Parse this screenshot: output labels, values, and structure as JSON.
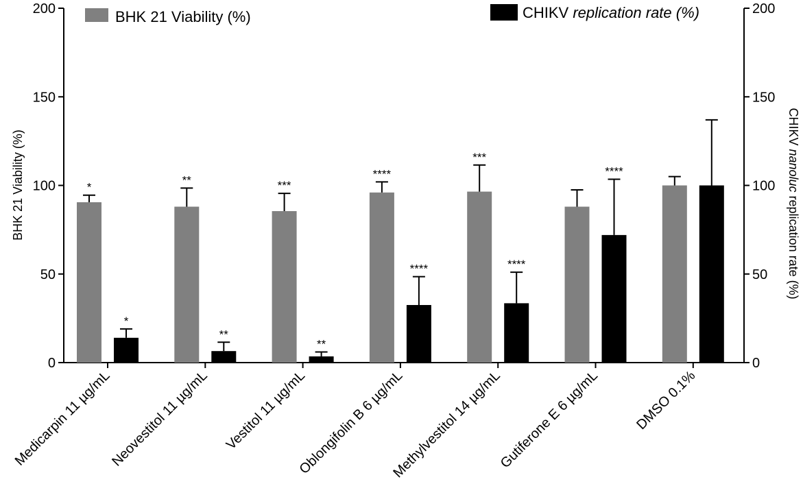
{
  "chart_data": {
    "type": "bar",
    "categories": [
      "Medicarpin 11 µg/mL",
      "Neovestitol 11 µg/mL",
      "Vestitol 11 µg/mL",
      "Oblongifolin B 6 µg/mL",
      "Methylvestitol 14 µg/mL",
      "Gutiferone E 6 µg/mL",
      "DMSO 0.1%"
    ],
    "series": [
      {
        "name": "BHK 21 Viability (%)",
        "color": "#808080",
        "axis": "left",
        "values": [
          90.5,
          88,
          85.5,
          96,
          96.5,
          88,
          100
        ],
        "error": [
          4,
          10.5,
          10,
          6,
          15,
          9.5,
          5
        ],
        "significance": [
          "*",
          "**",
          "***",
          "****",
          "***",
          "",
          ""
        ]
      },
      {
        "name": "CHIKV replication rate (%)",
        "color": "#000000",
        "axis": "right",
        "values": [
          14,
          6.5,
          3.5,
          32.5,
          33.5,
          72,
          100
        ],
        "error": [
          5,
          5,
          2.5,
          16,
          17.5,
          31.5,
          37
        ],
        "significance": [
          "*",
          "**",
          "**",
          "****",
          "****",
          "****",
          ""
        ]
      }
    ],
    "ylabel": "BHK 21 Viability (%)",
    "y2label": "CHIKV nanoluc replication rate (%)",
    "ylim": [
      0,
      200
    ],
    "y2lim": [
      0,
      200
    ],
    "yticks": [
      "0",
      "50",
      "100",
      "150",
      "200"
    ],
    "y2ticks": [
      "0",
      "50",
      "100",
      "150",
      "200"
    ],
    "legend": [
      {
        "label_plain": "BHK 21 Viability (%)",
        "color": "#808080",
        "position": "top-left"
      },
      {
        "label_plain": "CHIKV ",
        "label_italic": "replication rate (%)",
        "color": "#000000",
        "position": "top-right"
      }
    ],
    "y2label_parts": [
      "CHIKV ",
      "nanoluc",
      " replication rate (%)"
    ]
  }
}
